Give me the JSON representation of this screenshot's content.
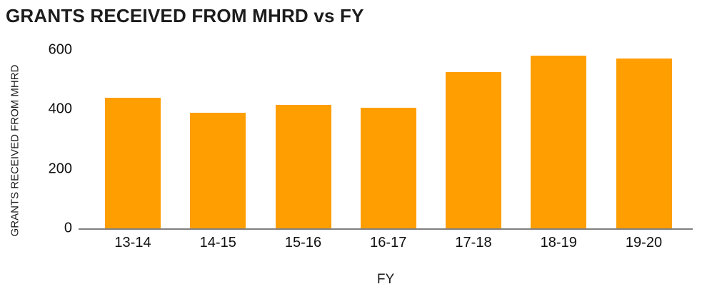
{
  "title": "GRANTS RECEIVED FROM MHRD vs FY",
  "colors": {
    "bar": "#FF9E01",
    "axis_line": "#808080",
    "text": "#1c1c1c"
  },
  "chart_data": {
    "type": "bar",
    "title": "GRANTS RECEIVED FROM MHRD vs FY",
    "categories": [
      "13-14",
      "14-15",
      "15-16",
      "16-17",
      "17-18",
      "18-19",
      "19-20"
    ],
    "values": [
      440,
      390,
      415,
      405,
      525,
      580,
      572
    ],
    "xlabel": "FY",
    "ylabel": "GRANTS RECEIVED FROM MHRD",
    "ylim": [
      0,
      600
    ],
    "yticks": [
      0,
      200,
      400,
      600
    ],
    "grid": false,
    "legend": false,
    "bar_color": "#FF9E01"
  }
}
